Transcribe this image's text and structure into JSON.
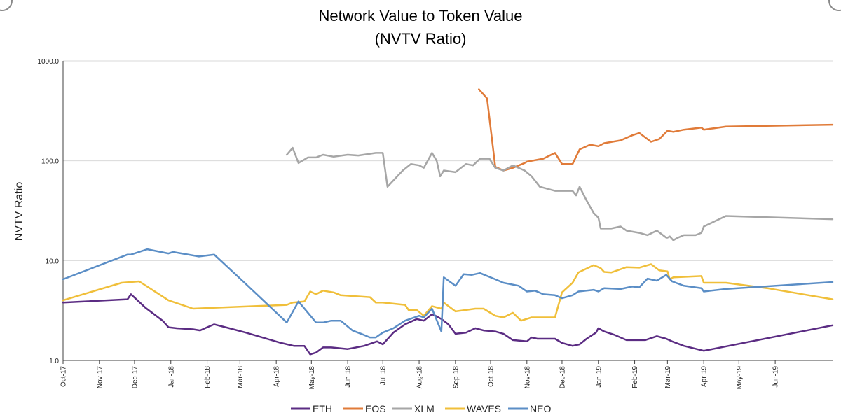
{
  "chart_data": {
    "type": "line",
    "title": "Network Value to Token Value",
    "subtitle": "(NVTV Ratio)",
    "ylabel": "NVTV Ratio",
    "xlabel": "",
    "yscale": "log",
    "ylim": [
      1,
      1000
    ],
    "yticks": [
      1,
      10,
      100,
      1000
    ],
    "ytick_labels": [
      "1.0",
      "10.0",
      "100.0",
      "1000.0"
    ],
    "xlim": [
      "2017-10-01",
      "2019-07-20"
    ],
    "xticks": [
      "2017-10-01",
      "2017-11-01",
      "2017-12-01",
      "2018-01-01",
      "2018-02-01",
      "2018-03-01",
      "2018-04-01",
      "2018-05-01",
      "2018-06-01",
      "2018-07-01",
      "2018-08-01",
      "2018-09-01",
      "2018-10-01",
      "2018-11-01",
      "2018-12-01",
      "2019-01-01",
      "2019-02-01",
      "2019-03-01",
      "2019-04-01",
      "2019-05-01",
      "2019-06-01"
    ],
    "xtick_labels": [
      "Oct-17",
      "Nov-17",
      "Dec-17",
      "Jan-18",
      "Feb-18",
      "Mar-18",
      "Apr-18",
      "May-18",
      "Jun-18",
      "Jul-18",
      "Aug-18",
      "Sep-18",
      "Oct-18",
      "Nov-18",
      "Dec-18",
      "Jan-19",
      "Feb-19",
      "Mar-19",
      "Apr-19",
      "May-19",
      "Jun-19"
    ],
    "grid": "horizontal",
    "legend": "bottom",
    "series": [
      {
        "name": "ETH",
        "color": "#5b2c83",
        "points": [
          [
            "2017-10-01",
            3.8
          ],
          [
            "2017-11-25",
            4.1
          ],
          [
            "2017-11-28",
            4.6
          ],
          [
            "2017-12-10",
            3.4
          ],
          [
            "2017-12-25",
            2.5
          ],
          [
            "2017-12-30",
            2.15
          ],
          [
            "2018-01-06",
            2.1
          ],
          [
            "2018-01-20",
            2.05
          ],
          [
            "2018-01-26",
            2.0
          ],
          [
            "2018-02-01",
            2.15
          ],
          [
            "2018-02-07",
            2.3
          ],
          [
            "2018-02-20",
            2.1
          ],
          [
            "2018-03-06",
            1.9
          ],
          [
            "2018-03-20",
            1.7
          ],
          [
            "2018-04-05",
            1.5
          ],
          [
            "2018-04-16",
            1.4
          ],
          [
            "2018-04-25",
            1.4
          ],
          [
            "2018-04-30",
            1.15
          ],
          [
            "2018-05-05",
            1.2
          ],
          [
            "2018-05-11",
            1.35
          ],
          [
            "2018-05-18",
            1.35
          ],
          [
            "2018-06-01",
            1.3
          ],
          [
            "2018-06-15",
            1.4
          ],
          [
            "2018-06-26",
            1.55
          ],
          [
            "2018-07-01",
            1.45
          ],
          [
            "2018-07-10",
            1.9
          ],
          [
            "2018-07-20",
            2.3
          ],
          [
            "2018-07-30",
            2.6
          ],
          [
            "2018-08-05",
            2.5
          ],
          [
            "2018-08-12",
            2.9
          ],
          [
            "2018-08-15",
            2.8
          ],
          [
            "2018-08-20",
            2.6
          ],
          [
            "2018-08-26",
            2.3
          ],
          [
            "2018-09-01",
            1.85
          ],
          [
            "2018-09-10",
            1.9
          ],
          [
            "2018-09-18",
            2.1
          ],
          [
            "2018-09-25",
            2.0
          ],
          [
            "2018-10-05",
            1.95
          ],
          [
            "2018-10-12",
            1.85
          ],
          [
            "2018-10-20",
            1.6
          ],
          [
            "2018-11-01",
            1.55
          ],
          [
            "2018-11-05",
            1.7
          ],
          [
            "2018-11-10",
            1.65
          ],
          [
            "2018-11-25",
            1.65
          ],
          [
            "2018-12-01",
            1.5
          ],
          [
            "2018-12-10",
            1.4
          ],
          [
            "2018-12-16",
            1.45
          ],
          [
            "2018-12-22",
            1.65
          ],
          [
            "2018-12-30",
            1.9
          ],
          [
            "2019-01-01",
            2.1
          ],
          [
            "2019-01-06",
            1.95
          ],
          [
            "2019-01-15",
            1.8
          ],
          [
            "2019-01-25",
            1.6
          ],
          [
            "2019-01-30",
            1.6
          ],
          [
            "2019-02-05",
            1.6
          ],
          [
            "2019-02-10",
            1.6
          ],
          [
            "2019-02-20",
            1.75
          ],
          [
            "2019-02-28",
            1.65
          ],
          [
            "2019-03-05",
            1.55
          ],
          [
            "2019-03-15",
            1.4
          ],
          [
            "2019-04-01",
            1.25
          ],
          [
            "2019-07-20",
            2.25
          ]
        ]
      },
      {
        "name": "EOS",
        "color": "#e07b39",
        "points": [
          [
            "2018-09-21",
            520
          ],
          [
            "2018-09-28",
            420
          ],
          [
            "2018-10-05",
            87
          ],
          [
            "2018-10-12",
            80
          ],
          [
            "2018-10-20",
            85
          ],
          [
            "2018-10-30",
            95
          ],
          [
            "2018-11-01",
            98
          ],
          [
            "2018-11-15",
            105
          ],
          [
            "2018-11-25",
            120
          ],
          [
            "2018-12-01",
            93
          ],
          [
            "2018-12-10",
            93
          ],
          [
            "2018-12-16",
            130
          ],
          [
            "2018-12-25",
            145
          ],
          [
            "2019-01-01",
            140
          ],
          [
            "2019-01-06",
            150
          ],
          [
            "2019-01-20",
            160
          ],
          [
            "2019-01-30",
            180
          ],
          [
            "2019-02-05",
            190
          ],
          [
            "2019-02-15",
            155
          ],
          [
            "2019-02-22",
            165
          ],
          [
            "2019-03-01",
            200
          ],
          [
            "2019-03-06",
            195
          ],
          [
            "2019-03-15",
            205
          ],
          [
            "2019-03-30",
            215
          ],
          [
            "2019-04-01",
            205
          ],
          [
            "2019-04-20",
            220
          ],
          [
            "2019-07-20",
            230
          ]
        ]
      },
      {
        "name": "XLM",
        "color": "#a6a6a6",
        "points": [
          [
            "2018-04-10",
            115
          ],
          [
            "2018-04-15",
            135
          ],
          [
            "2018-04-20",
            95
          ],
          [
            "2018-04-28",
            108
          ],
          [
            "2018-05-05",
            108
          ],
          [
            "2018-05-11",
            115
          ],
          [
            "2018-05-20",
            110
          ],
          [
            "2018-06-01",
            115
          ],
          [
            "2018-06-10",
            113
          ],
          [
            "2018-06-25",
            120
          ],
          [
            "2018-07-01",
            120
          ],
          [
            "2018-07-05",
            55
          ],
          [
            "2018-07-18",
            80
          ],
          [
            "2018-07-25",
            93
          ],
          [
            "2018-08-01",
            90
          ],
          [
            "2018-08-05",
            85
          ],
          [
            "2018-08-12",
            120
          ],
          [
            "2018-08-16",
            100
          ],
          [
            "2018-08-19",
            70
          ],
          [
            "2018-08-22",
            80
          ],
          [
            "2018-09-01",
            77
          ],
          [
            "2018-09-10",
            93
          ],
          [
            "2018-09-16",
            90
          ],
          [
            "2018-09-22",
            105
          ],
          [
            "2018-09-30",
            105
          ],
          [
            "2018-10-05",
            85
          ],
          [
            "2018-10-12",
            80
          ],
          [
            "2018-10-20",
            90
          ],
          [
            "2018-10-30",
            80
          ],
          [
            "2018-11-05",
            70
          ],
          [
            "2018-11-12",
            55
          ],
          [
            "2018-11-25",
            50
          ],
          [
            "2018-12-01",
            50
          ],
          [
            "2018-12-10",
            50
          ],
          [
            "2018-12-13",
            45
          ],
          [
            "2018-12-16",
            55
          ],
          [
            "2018-12-22",
            40
          ],
          [
            "2018-12-28",
            30
          ],
          [
            "2019-01-01",
            27
          ],
          [
            "2019-01-03",
            21
          ],
          [
            "2019-01-12",
            21
          ],
          [
            "2019-01-20",
            22
          ],
          [
            "2019-01-25",
            20
          ],
          [
            "2019-02-05",
            19
          ],
          [
            "2019-02-12",
            18
          ],
          [
            "2019-02-20",
            20
          ],
          [
            "2019-02-28",
            17
          ],
          [
            "2019-03-01",
            17
          ],
          [
            "2019-03-03",
            17.5
          ],
          [
            "2019-03-06",
            16
          ],
          [
            "2019-03-10",
            17
          ],
          [
            "2019-03-15",
            18
          ],
          [
            "2019-03-25",
            18
          ],
          [
            "2019-03-30",
            19
          ],
          [
            "2019-04-01",
            22
          ],
          [
            "2019-04-20",
            28
          ],
          [
            "2019-07-20",
            26
          ]
        ]
      },
      {
        "name": "WAVES",
        "color": "#f0bf3a",
        "points": [
          [
            "2017-10-01",
            4.0
          ],
          [
            "2017-11-20",
            6.0
          ],
          [
            "2017-12-05",
            6.2
          ],
          [
            "2017-12-30",
            4.0
          ],
          [
            "2018-01-20",
            3.3
          ],
          [
            "2018-02-01",
            3.35
          ],
          [
            "2018-04-10",
            3.6
          ],
          [
            "2018-04-15",
            3.8
          ],
          [
            "2018-04-25",
            3.9
          ],
          [
            "2018-04-30",
            4.9
          ],
          [
            "2018-05-05",
            4.6
          ],
          [
            "2018-05-11",
            5.0
          ],
          [
            "2018-05-20",
            4.8
          ],
          [
            "2018-05-26",
            4.5
          ],
          [
            "2018-06-20",
            4.3
          ],
          [
            "2018-06-25",
            3.8
          ],
          [
            "2018-07-01",
            3.8
          ],
          [
            "2018-07-20",
            3.6
          ],
          [
            "2018-07-23",
            3.2
          ],
          [
            "2018-07-30",
            3.2
          ],
          [
            "2018-08-05",
            2.8
          ],
          [
            "2018-08-12",
            3.5
          ],
          [
            "2018-08-20",
            3.3
          ],
          [
            "2018-08-22",
            3.8
          ],
          [
            "2018-09-01",
            3.1
          ],
          [
            "2018-09-10",
            3.2
          ],
          [
            "2018-09-18",
            3.3
          ],
          [
            "2018-09-25",
            3.3
          ],
          [
            "2018-10-05",
            2.8
          ],
          [
            "2018-10-12",
            2.7
          ],
          [
            "2018-10-20",
            3.0
          ],
          [
            "2018-10-27",
            2.5
          ],
          [
            "2018-11-05",
            2.7
          ],
          [
            "2018-11-20",
            2.7
          ],
          [
            "2018-11-25",
            2.7
          ],
          [
            "2018-12-01",
            4.8
          ],
          [
            "2018-12-10",
            6.0
          ],
          [
            "2018-12-15",
            7.6
          ],
          [
            "2018-12-28",
            9.0
          ],
          [
            "2019-01-01",
            8.6
          ],
          [
            "2019-01-03",
            8.4
          ],
          [
            "2019-01-06",
            7.7
          ],
          [
            "2019-01-12",
            7.6
          ],
          [
            "2019-01-25",
            8.6
          ],
          [
            "2019-02-05",
            8.5
          ],
          [
            "2019-02-15",
            9.2
          ],
          [
            "2019-02-22",
            8.0
          ],
          [
            "2019-03-01",
            7.8
          ],
          [
            "2019-03-03",
            6.5
          ],
          [
            "2019-03-06",
            6.8
          ],
          [
            "2019-03-30",
            7.0
          ],
          [
            "2019-04-01",
            6.0
          ],
          [
            "2019-04-20",
            6.0
          ],
          [
            "2019-05-25",
            5.3
          ],
          [
            "2019-07-20",
            4.1
          ]
        ]
      },
      {
        "name": "NEO",
        "color": "#5b8ec6",
        "points": [
          [
            "2017-10-01",
            6.5
          ],
          [
            "2017-11-25",
            11.5
          ],
          [
            "2017-11-28",
            11.5
          ],
          [
            "2017-12-12",
            13.0
          ],
          [
            "2017-12-30",
            11.8
          ],
          [
            "2018-01-03",
            12.2
          ],
          [
            "2018-01-25",
            11.0
          ],
          [
            "2018-02-07",
            11.5
          ],
          [
            "2018-03-05",
            6.0
          ],
          [
            "2018-04-10",
            2.4
          ],
          [
            "2018-04-20",
            3.9
          ],
          [
            "2018-05-05",
            2.4
          ],
          [
            "2018-05-11",
            2.4
          ],
          [
            "2018-05-18",
            2.5
          ],
          [
            "2018-05-26",
            2.5
          ],
          [
            "2018-06-05",
            2.0
          ],
          [
            "2018-06-15",
            1.8
          ],
          [
            "2018-06-20",
            1.7
          ],
          [
            "2018-06-25",
            1.7
          ],
          [
            "2018-07-01",
            1.9
          ],
          [
            "2018-07-10",
            2.1
          ],
          [
            "2018-07-20",
            2.5
          ],
          [
            "2018-08-01",
            2.8
          ],
          [
            "2018-08-05",
            2.7
          ],
          [
            "2018-08-12",
            3.3
          ],
          [
            "2018-08-20",
            1.95
          ],
          [
            "2018-08-22",
            6.8
          ],
          [
            "2018-09-01",
            5.6
          ],
          [
            "2018-09-08",
            7.3
          ],
          [
            "2018-09-15",
            7.2
          ],
          [
            "2018-09-22",
            7.5
          ],
          [
            "2018-10-05",
            6.5
          ],
          [
            "2018-10-12",
            6.0
          ],
          [
            "2018-10-25",
            5.6
          ],
          [
            "2018-11-01",
            4.9
          ],
          [
            "2018-11-08",
            5.0
          ],
          [
            "2018-11-15",
            4.6
          ],
          [
            "2018-11-25",
            4.5
          ],
          [
            "2018-12-01",
            4.2
          ],
          [
            "2018-12-10",
            4.5
          ],
          [
            "2018-12-15",
            4.9
          ],
          [
            "2018-12-28",
            5.1
          ],
          [
            "2019-01-01",
            4.9
          ],
          [
            "2019-01-06",
            5.3
          ],
          [
            "2019-01-20",
            5.2
          ],
          [
            "2019-01-30",
            5.5
          ],
          [
            "2019-02-05",
            5.4
          ],
          [
            "2019-02-12",
            6.6
          ],
          [
            "2019-02-20",
            6.3
          ],
          [
            "2019-02-28",
            7.2
          ],
          [
            "2019-03-05",
            6.2
          ],
          [
            "2019-03-15",
            5.6
          ],
          [
            "2019-03-30",
            5.3
          ],
          [
            "2019-04-01",
            4.9
          ],
          [
            "2019-04-20",
            5.2
          ],
          [
            "2019-07-20",
            6.1
          ]
        ]
      }
    ]
  }
}
